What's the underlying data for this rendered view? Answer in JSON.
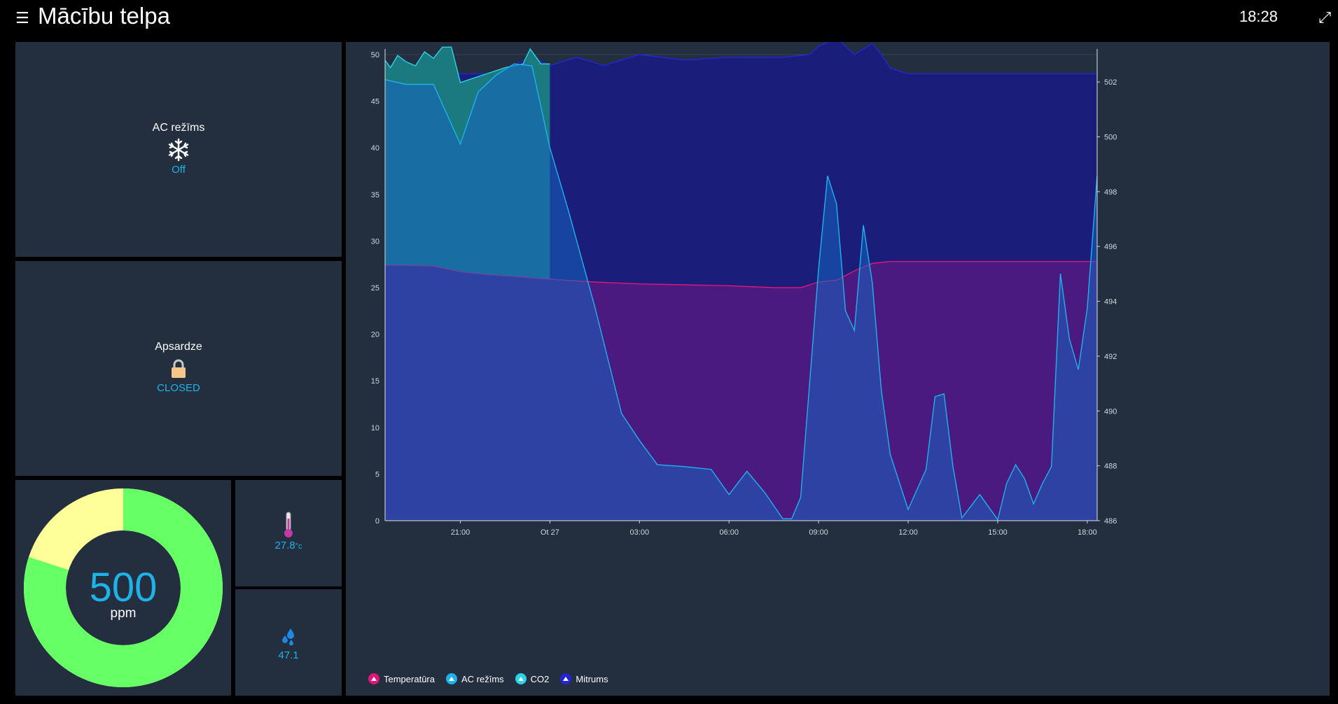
{
  "header": {
    "title": "Mācību telpa",
    "clock": "18:28",
    "menu_icon": "hamburger-icon",
    "fullscreen_icon": "fullscreen-icon"
  },
  "tiles": {
    "ac": {
      "label": "AC režīms",
      "icon": "snowflake-icon",
      "value": "Off"
    },
    "security": {
      "label": "Apsardze",
      "icon": "lock-icon",
      "value": "CLOSED"
    },
    "co2_gauge": {
      "value": "500",
      "unit": "ppm",
      "fraction_green": 0.8,
      "green": "#66ff66",
      "yellow": "#ffff99"
    },
    "temperature": {
      "icon": "thermometer-icon",
      "value": "27.8",
      "unit": "°c"
    },
    "humidity": {
      "icon": "water-drops-icon",
      "value": "47.1"
    }
  },
  "colors": {
    "accent": "#1fb2e8",
    "card_bg": "#232f3e",
    "temperature": "#e0157a",
    "ac": "#1fb2e8",
    "co2": "#2bd2e8",
    "humidity": "#2424d8"
  },
  "chart_data": {
    "type": "area",
    "x_ticks": [
      "21:00",
      "Ot 27",
      "03:00",
      "06:00",
      "09:00",
      "12:00",
      "15:00",
      "18:00"
    ],
    "x_tick_pos": [
      0,
      1,
      2,
      3,
      4,
      5,
      6,
      7
    ],
    "xlim": [
      -0.84,
      7.11
    ],
    "y_left": {
      "ticks": [
        "0",
        "5",
        "10",
        "15",
        "20",
        "25",
        "30",
        "35",
        "40",
        "45",
        "50"
      ],
      "ylim": [
        0,
        50
      ]
    },
    "y_right": {
      "ticks": [
        "486",
        "488",
        "490",
        "492",
        "494",
        "496",
        "498",
        "500",
        "502"
      ],
      "ylim": [
        486,
        503
      ]
    },
    "grid": true,
    "legend_position": "bottom-left",
    "series": [
      {
        "name": "Temperatūra",
        "axis": "left",
        "color": "#e0157a",
        "x": [
          -0.84,
          -0.6,
          -0.3,
          0,
          0.3,
          0.6,
          1,
          1.5,
          2,
          2.5,
          3,
          3.5,
          3.8,
          4,
          4.1,
          4.2,
          4.4,
          4.6,
          4.8,
          5,
          5.5,
          6,
          6.5,
          7,
          7.11
        ],
        "y": [
          27.4,
          27.4,
          27.3,
          26.7,
          26.4,
          26.2,
          25.9,
          25.6,
          25.4,
          25.3,
          25.2,
          25.0,
          25.0,
          25.6,
          25.7,
          25.8,
          26.8,
          27.6,
          27.8,
          27.8,
          27.8,
          27.8,
          27.8,
          27.8,
          27.8
        ]
      },
      {
        "name": "AC režīms",
        "axis": "left",
        "color": "#1fb2e8",
        "x": [
          -0.84,
          -0.6,
          -0.3,
          0,
          0.2,
          0.4,
          0.6,
          0.8,
          1,
          1.2,
          1.5,
          1.8,
          2,
          2.2,
          2.5,
          2.8,
          3,
          3.2,
          3.4,
          3.6,
          3.7,
          3.8,
          4,
          4.1,
          4.2,
          4.3,
          4.4,
          4.5,
          4.6,
          4.7,
          4.8,
          5,
          5.2,
          5.3,
          5.4,
          5.5,
          5.6,
          5.8,
          6,
          6.1,
          6.2,
          6.3,
          6.4,
          6.5,
          6.6,
          6.7,
          6.8,
          6.9,
          7,
          7.11
        ],
        "y": [
          47.3,
          46.8,
          46.8,
          40.4,
          46.0,
          47.8,
          49.0,
          48.8,
          40.0,
          33.5,
          23.0,
          11.5,
          8.6,
          6.0,
          5.8,
          5.5,
          2.8,
          5.3,
          3.0,
          0.2,
          0.2,
          2.5,
          27.0,
          37.0,
          34.0,
          22.5,
          20.4,
          31.7,
          25.5,
          14.0,
          7.1,
          1.2,
          5.5,
          13.3,
          13.6,
          5.8,
          0.3,
          2.8,
          0.1,
          4.0,
          6.0,
          4.5,
          1.8,
          4.0,
          5.8,
          26.5,
          19.5,
          16.2,
          22.8,
          37.0
        ]
      },
      {
        "name": "CO2",
        "axis": "left",
        "color": "#2bd2e8",
        "x": [
          -0.84,
          -0.78,
          -0.7,
          -0.6,
          -0.5,
          -0.4,
          -0.3,
          -0.2,
          -0.1,
          0,
          0.5,
          0.7,
          0.78,
          0.9,
          1
        ],
        "y": [
          49.4,
          48.6,
          49.9,
          49.2,
          48.8,
          50.3,
          49.6,
          50.8,
          50.8,
          47.0,
          48.6,
          49.0,
          50.6,
          49.0,
          49.0
        ]
      },
      {
        "name": "Mitrums",
        "axis": "right",
        "color": "#2424d8",
        "x": [
          -0.84,
          -0.5,
          -0.2,
          0,
          0.3,
          0.5,
          0.8,
          1,
          1.3,
          1.6,
          2,
          2.5,
          3,
          3.3,
          3.6,
          3.9,
          4,
          4.2,
          4.4,
          4.6,
          4.7,
          4.8,
          4.9,
          5,
          5.5,
          6,
          6.5,
          7,
          7.11
        ],
        "y": [
          502.1,
          502.1,
          502.2,
          502.3,
          502.3,
          502.5,
          502.9,
          502.6,
          502.9,
          502.6,
          503.0,
          502.8,
          502.9,
          502.9,
          502.9,
          503.0,
          503.3,
          503.6,
          503.0,
          503.4,
          503.0,
          502.5,
          502.4,
          502.3,
          502.3,
          502.3,
          502.3,
          502.3,
          502.3
        ]
      }
    ]
  }
}
